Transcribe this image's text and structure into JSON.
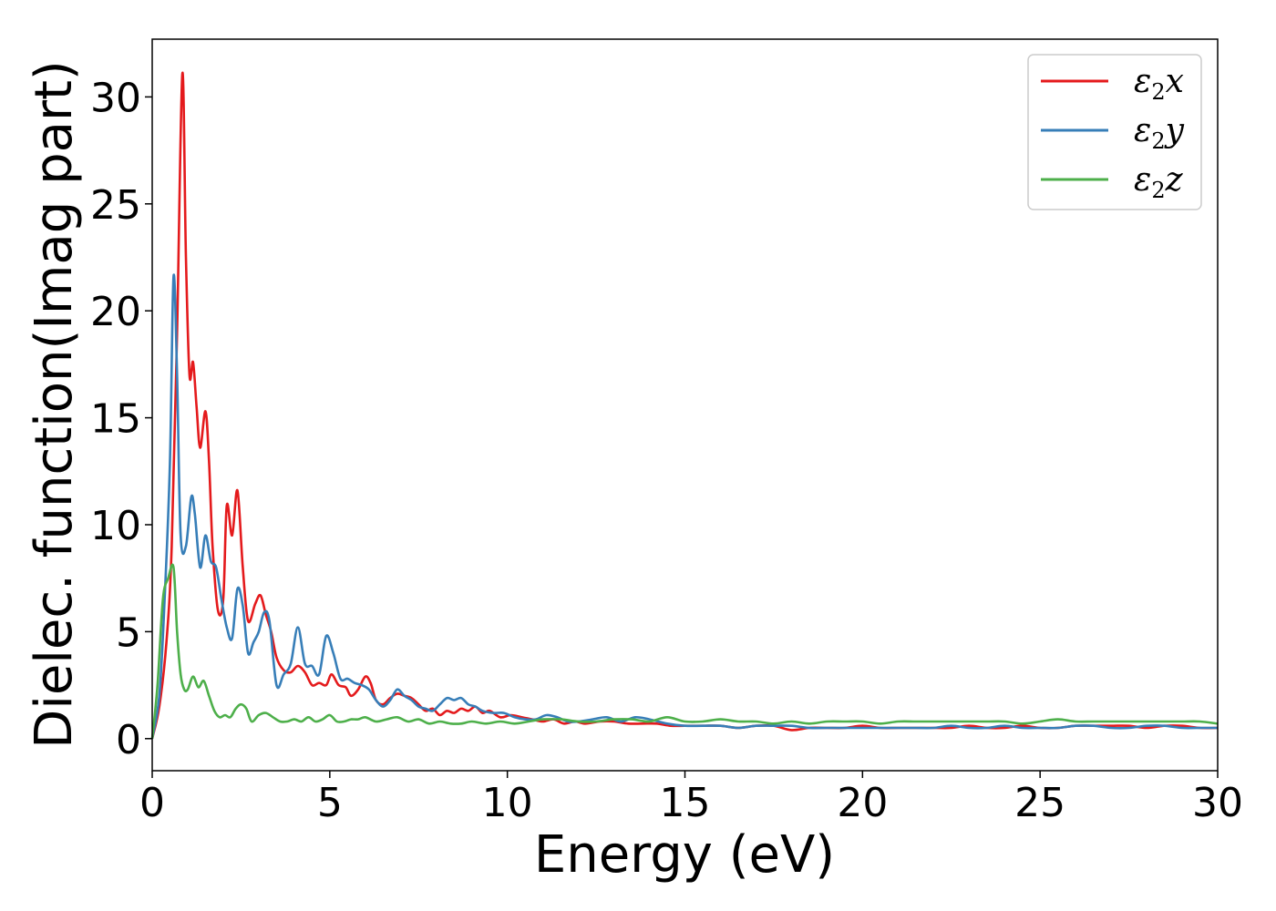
{
  "chart_data": {
    "type": "line",
    "xlabel": "Energy (eV)",
    "ylabel": "Dielec. function(Imag part)",
    "xlim": [
      0,
      30
    ],
    "ylim": [
      -1.5,
      32.7
    ],
    "xticks": [
      0,
      5,
      10,
      15,
      20,
      25,
      30
    ],
    "yticks": [
      0,
      5,
      10,
      15,
      20,
      25,
      30
    ],
    "grid": false,
    "legend_placement": "top-right",
    "series": [
      {
        "name": "ε2x",
        "legend_symbol": "ε",
        "legend_sub": "2",
        "legend_suffix": "x",
        "color": "#e41a1c",
        "x": [
          0,
          0.2,
          0.4,
          0.55,
          0.7,
          0.85,
          0.95,
          1.05,
          1.15,
          1.25,
          1.35,
          1.5,
          1.6,
          1.7,
          1.85,
          2.0,
          2.1,
          2.25,
          2.4,
          2.55,
          2.7,
          2.9,
          3.05,
          3.2,
          3.35,
          3.5,
          3.7,
          3.9,
          4.1,
          4.3,
          4.5,
          4.7,
          4.9,
          5.05,
          5.25,
          5.45,
          5.6,
          5.8,
          6.0,
          6.15,
          6.3,
          6.5,
          6.7,
          6.9,
          7.1,
          7.3,
          7.5,
          7.7,
          7.9,
          8.1,
          8.3,
          8.5,
          8.7,
          8.9,
          9.1,
          9.3,
          9.5,
          9.8,
          10.1,
          10.4,
          10.7,
          11.0,
          11.3,
          11.6,
          11.9,
          12.2,
          12.6,
          13.0,
          13.4,
          13.8,
          14.2,
          14.6,
          15.0,
          15.5,
          16.0,
          16.5,
          17.0,
          17.5,
          18.0,
          18.5,
          19.0,
          19.5,
          20.0,
          20.5,
          21.0,
          21.5,
          22.0,
          22.5,
          23.0,
          23.5,
          24.0,
          24.5,
          25.0,
          25.5,
          26.0,
          26.5,
          27.0,
          27.5,
          28.0,
          28.5,
          29.0,
          29.5,
          30.0
        ],
        "y": [
          0,
          1.5,
          4.5,
          9.0,
          19.0,
          31.1,
          22.5,
          17.0,
          17.6,
          15.5,
          13.6,
          15.3,
          13.0,
          9.0,
          6.0,
          6.5,
          10.9,
          9.5,
          11.6,
          8.0,
          5.5,
          6.3,
          6.7,
          5.8,
          5.0,
          3.8,
          3.2,
          3.1,
          3.4,
          3.1,
          2.5,
          2.6,
          2.5,
          3.0,
          2.5,
          2.4,
          2.0,
          2.3,
          2.9,
          2.6,
          1.8,
          1.6,
          1.9,
          2.1,
          2.0,
          1.9,
          1.6,
          1.3,
          1.4,
          1.1,
          1.3,
          1.2,
          1.4,
          1.3,
          1.5,
          1.2,
          1.3,
          1.0,
          1.1,
          1.0,
          0.9,
          0.8,
          0.9,
          0.7,
          0.8,
          0.7,
          0.8,
          0.8,
          0.7,
          0.7,
          0.7,
          0.6,
          0.6,
          0.6,
          0.6,
          0.5,
          0.6,
          0.6,
          0.4,
          0.5,
          0.5,
          0.5,
          0.6,
          0.5,
          0.5,
          0.5,
          0.5,
          0.5,
          0.6,
          0.5,
          0.5,
          0.6,
          0.5,
          0.5,
          0.6,
          0.6,
          0.6,
          0.6,
          0.5,
          0.6,
          0.6,
          0.5,
          0.5
        ]
      },
      {
        "name": "ε2y",
        "legend_symbol": "ε",
        "legend_sub": "2",
        "legend_suffix": "y",
        "color": "#377eb8",
        "x": [
          0,
          0.2,
          0.35,
          0.5,
          0.6,
          0.7,
          0.8,
          0.95,
          1.1,
          1.2,
          1.35,
          1.5,
          1.65,
          1.8,
          1.95,
          2.1,
          2.25,
          2.4,
          2.55,
          2.7,
          2.85,
          3.0,
          3.15,
          3.3,
          3.5,
          3.7,
          3.9,
          4.1,
          4.3,
          4.5,
          4.7,
          4.9,
          5.1,
          5.3,
          5.5,
          5.7,
          5.9,
          6.1,
          6.3,
          6.5,
          6.7,
          6.9,
          7.1,
          7.3,
          7.5,
          7.7,
          7.9,
          8.1,
          8.3,
          8.5,
          8.7,
          8.9,
          9.1,
          9.3,
          9.6,
          9.9,
          10.2,
          10.5,
          10.8,
          11.1,
          11.4,
          11.7,
          12.0,
          12.4,
          12.8,
          13.2,
          13.6,
          14.0,
          14.5,
          15.0,
          15.5,
          16.0,
          16.5,
          17.0,
          17.5,
          18.0,
          18.5,
          19.0,
          19.5,
          20.0,
          20.5,
          21.0,
          21.5,
          22.0,
          22.5,
          23.0,
          23.5,
          24.0,
          24.5,
          25.0,
          25.5,
          26.0,
          26.5,
          27.0,
          27.5,
          28.0,
          28.5,
          29.0,
          29.5,
          30.0
        ],
        "y": [
          0,
          2.0,
          6.5,
          13.0,
          21.6,
          17.0,
          9.5,
          9.0,
          11.3,
          10.5,
          8.0,
          9.5,
          8.3,
          8.0,
          6.5,
          5.2,
          4.7,
          7.0,
          6.2,
          4.0,
          4.5,
          5.0,
          5.9,
          5.5,
          2.5,
          3.0,
          3.5,
          5.2,
          3.5,
          3.4,
          3.0,
          4.8,
          4.0,
          2.8,
          2.8,
          2.6,
          2.5,
          2.3,
          1.8,
          1.5,
          1.8,
          2.3,
          2.0,
          1.8,
          1.5,
          1.4,
          1.3,
          1.6,
          1.9,
          1.8,
          1.9,
          1.6,
          1.5,
          1.3,
          1.2,
          1.2,
          1.0,
          0.9,
          0.9,
          1.1,
          1.0,
          0.8,
          0.8,
          0.9,
          1.0,
          0.8,
          1.0,
          0.9,
          0.7,
          0.6,
          0.6,
          0.6,
          0.5,
          0.6,
          0.6,
          0.6,
          0.5,
          0.5,
          0.5,
          0.5,
          0.5,
          0.5,
          0.5,
          0.5,
          0.6,
          0.5,
          0.5,
          0.6,
          0.5,
          0.5,
          0.5,
          0.6,
          0.6,
          0.5,
          0.5,
          0.6,
          0.6,
          0.5,
          0.5,
          0.5
        ]
      },
      {
        "name": "ε2z",
        "legend_symbol": "ε",
        "legend_sub": "2",
        "legend_suffix": "z",
        "color": "#4daf4a",
        "x": [
          0,
          0.15,
          0.3,
          0.45,
          0.6,
          0.7,
          0.8,
          0.9,
          1.0,
          1.15,
          1.3,
          1.45,
          1.6,
          1.75,
          1.9,
          2.05,
          2.2,
          2.35,
          2.5,
          2.65,
          2.8,
          3.0,
          3.2,
          3.4,
          3.6,
          3.8,
          4.0,
          4.2,
          4.4,
          4.6,
          4.8,
          5.0,
          5.2,
          5.4,
          5.6,
          5.8,
          6.0,
          6.3,
          6.6,
          6.9,
          7.2,
          7.5,
          7.8,
          8.1,
          8.4,
          8.7,
          9.0,
          9.4,
          9.8,
          10.2,
          10.6,
          11.0,
          11.5,
          12.0,
          12.5,
          13.0,
          13.5,
          14.0,
          14.5,
          15.0,
          15.5,
          16.0,
          16.5,
          17.0,
          17.5,
          18.0,
          18.5,
          19.0,
          19.5,
          20.0,
          20.5,
          21.0,
          21.5,
          22.0,
          22.5,
          23.0,
          23.5,
          24.0,
          24.5,
          25.0,
          25.5,
          26.0,
          26.5,
          27.0,
          27.5,
          28.0,
          28.5,
          29.0,
          29.5,
          30.0
        ],
        "y": [
          0,
          2.5,
          6.5,
          7.5,
          8.0,
          5.0,
          3.0,
          2.3,
          2.3,
          2.9,
          2.4,
          2.7,
          2.0,
          1.3,
          1.0,
          1.1,
          1.0,
          1.4,
          1.6,
          1.4,
          0.8,
          1.1,
          1.2,
          1.0,
          0.8,
          0.8,
          0.9,
          0.8,
          1.0,
          0.8,
          0.9,
          1.1,
          0.8,
          0.8,
          0.9,
          0.9,
          1.0,
          0.8,
          0.9,
          1.0,
          0.8,
          0.9,
          0.7,
          0.8,
          0.7,
          0.7,
          0.8,
          0.7,
          0.8,
          0.7,
          0.8,
          0.9,
          0.9,
          0.8,
          0.8,
          0.9,
          0.9,
          0.8,
          1.0,
          0.8,
          0.8,
          0.9,
          0.8,
          0.8,
          0.7,
          0.8,
          0.7,
          0.8,
          0.8,
          0.8,
          0.7,
          0.8,
          0.8,
          0.8,
          0.8,
          0.8,
          0.8,
          0.8,
          0.7,
          0.8,
          0.9,
          0.8,
          0.8,
          0.8,
          0.8,
          0.8,
          0.8,
          0.8,
          0.8,
          0.7
        ]
      }
    ]
  }
}
